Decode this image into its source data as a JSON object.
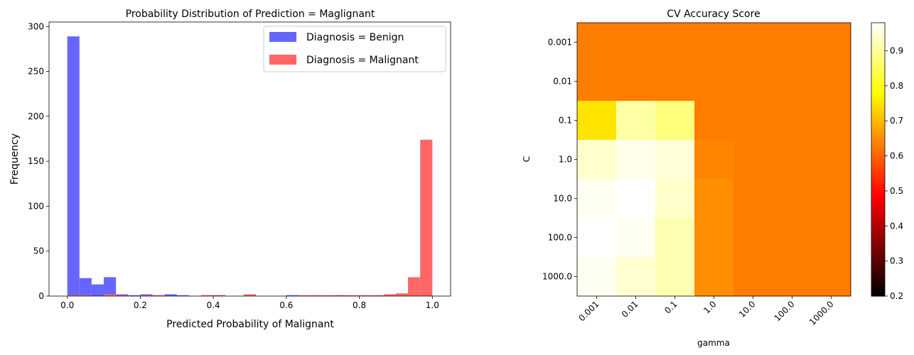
{
  "chart_data": [
    {
      "type": "histogram",
      "title": "Probability Distribution of Prediction = Maglignant",
      "xlabel": "Predicted Probability of Malignant",
      "ylabel": "Frequency",
      "xlim": [
        -0.05,
        1.05
      ],
      "ylim": [
        0,
        305
      ],
      "xticks": [
        "0.0",
        "0.2",
        "0.4",
        "0.6",
        "0.8",
        "1.0"
      ],
      "yticks": [
        "0",
        "50",
        "100",
        "150",
        "200",
        "250",
        "300"
      ],
      "legend_position": "top-right",
      "bin_width": 0.0333,
      "series": [
        {
          "name": "Diagnosis = Benign",
          "color": "#6666ff",
          "bin_starts": [
            0.0,
            0.0333,
            0.0667,
            0.1,
            0.1333,
            0.1667,
            0.2,
            0.2333,
            0.2667,
            0.3,
            0.3667,
            0.4,
            0.6,
            0.7333
          ],
          "counts": [
            289,
            20,
            13,
            21,
            2,
            1,
            2,
            1,
            2,
            1,
            1,
            1,
            1,
            1
          ]
        },
        {
          "name": "Diagnosis = Malignant",
          "color": "#ff6666",
          "bin_starts": [
            0.0,
            0.0333,
            0.1,
            0.1333,
            0.2,
            0.2333,
            0.3667,
            0.4,
            0.4833,
            0.6333,
            0.6667,
            0.7,
            0.7333,
            0.7667,
            0.8,
            0.8333,
            0.8667,
            0.9,
            0.9333,
            0.9667
          ],
          "counts": [
            1,
            1,
            2,
            1,
            1,
            1,
            1,
            1,
            2,
            1,
            1,
            1,
            1,
            1,
            1,
            1,
            2,
            3,
            21,
            174
          ]
        }
      ]
    },
    {
      "type": "heatmap",
      "title": "CV Accuracy Score",
      "xlabel": "gamma",
      "ylabel": "C",
      "x_categories": [
        "0.001",
        "0.01",
        "0.1",
        "1.0",
        "10.0",
        "100.0",
        "1000.0"
      ],
      "y_categories": [
        "0.001",
        "0.01",
        "0.1",
        "1.0",
        "10.0",
        "100.0",
        "1000.0"
      ],
      "colormap": "hot",
      "color_range": [
        0.2,
        0.98
      ],
      "colorbar_ticks": [
        "0.2",
        "0.3",
        "0.4",
        "0.5",
        "0.6",
        "0.7",
        "0.8",
        "0.9"
      ],
      "values": [
        [
          0.63,
          0.63,
          0.63,
          0.63,
          0.63,
          0.63,
          0.63
        ],
        [
          0.63,
          0.63,
          0.63,
          0.63,
          0.63,
          0.63,
          0.63
        ],
        [
          0.75,
          0.91,
          0.88,
          0.63,
          0.63,
          0.63,
          0.63
        ],
        [
          0.94,
          0.965,
          0.95,
          0.64,
          0.63,
          0.63,
          0.63
        ],
        [
          0.97,
          0.98,
          0.94,
          0.65,
          0.63,
          0.63,
          0.63
        ],
        [
          0.98,
          0.97,
          0.92,
          0.65,
          0.63,
          0.63,
          0.63
        ],
        [
          0.97,
          0.945,
          0.92,
          0.65,
          0.63,
          0.63,
          0.63
        ]
      ]
    }
  ]
}
